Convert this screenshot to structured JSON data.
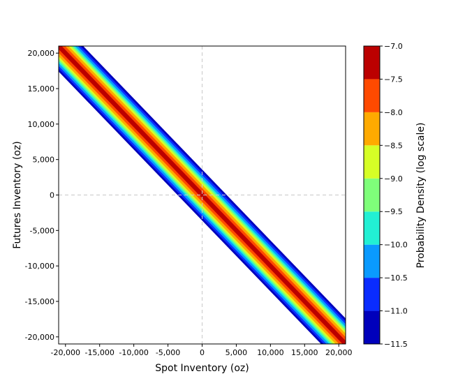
{
  "chart_data": {
    "type": "heatmap",
    "title": "",
    "xlabel": "Spot Inventory (oz)",
    "ylabel": "Futures Inventory (oz)",
    "xlim": [
      -21000,
      21000
    ],
    "ylim": [
      -21000,
      21000
    ],
    "x_ticks": [
      -20000,
      -15000,
      -10000,
      -5000,
      0,
      5000,
      10000,
      15000,
      20000
    ],
    "x_tick_labels": [
      "-20,000",
      "-15,000",
      "-10,000",
      "-5,000",
      "0",
      "5,000",
      "10,000",
      "15,000",
      "20,000"
    ],
    "y_ticks": [
      -20000,
      -15000,
      -10000,
      -5000,
      0,
      5000,
      10000,
      15000,
      20000
    ],
    "y_tick_labels": [
      "-20,000",
      "-15,000",
      "-10,000",
      "-5,000",
      "0",
      "5,000",
      "10,000",
      "15,000",
      "20,000"
    ],
    "reference_lines": [
      {
        "axis": "x",
        "value": 0,
        "style": "dashed"
      },
      {
        "axis": "y",
        "value": 0,
        "style": "dashed"
      }
    ],
    "grid": false,
    "relationship": {
      "slope": -1.0,
      "intercept": 0
    },
    "band_halfwidth_by_level": [
      {
        "level": -7.25,
        "halfwidth": 450
      },
      {
        "level": -7.75,
        "halfwidth": 950
      },
      {
        "level": -8.25,
        "halfwidth": 1450
      },
      {
        "level": -8.75,
        "halfwidth": 1800
      },
      {
        "level": -9.25,
        "halfwidth": 2100
      },
      {
        "level": -9.75,
        "halfwidth": 2400
      },
      {
        "level": -10.25,
        "halfwidth": 2800
      },
      {
        "level": -10.75,
        "halfwidth": 3200
      },
      {
        "level": -11.25,
        "halfwidth": 3600
      }
    ],
    "colorbar": {
      "label": "Probability Density (log scale)",
      "min": -11.5,
      "max": -7.0,
      "scale": "log",
      "ticks": [
        -7.0,
        -7.5,
        -8.0,
        -8.5,
        -9.0,
        -9.5,
        -10.0,
        -10.5,
        -11.0,
        -11.5
      ],
      "tick_labels": [
        "−7.0",
        "−7.5",
        "−8.0",
        "−8.5",
        "−9.0",
        "−9.5",
        "−10.0",
        "−10.5",
        "−11.0",
        "−11.5"
      ],
      "levels": [
        {
          "from": -11.5,
          "to": -11.0,
          "color": "#0000bb"
        },
        {
          "from": -11.0,
          "to": -10.5,
          "color": "#0a2cff"
        },
        {
          "from": -10.5,
          "to": -10.0,
          "color": "#0a9aff"
        },
        {
          "from": -10.0,
          "to": -9.5,
          "color": "#22f0d4"
        },
        {
          "from": -9.5,
          "to": -9.0,
          "color": "#7fff7a"
        },
        {
          "from": -9.0,
          "to": -8.5,
          "color": "#d6ff26"
        },
        {
          "from": -8.5,
          "to": -8.0,
          "color": "#ffaa00"
        },
        {
          "from": -8.0,
          "to": -7.5,
          "color": "#ff4a00"
        },
        {
          "from": -7.5,
          "to": -7.0,
          "color": "#bb0000"
        }
      ]
    }
  }
}
